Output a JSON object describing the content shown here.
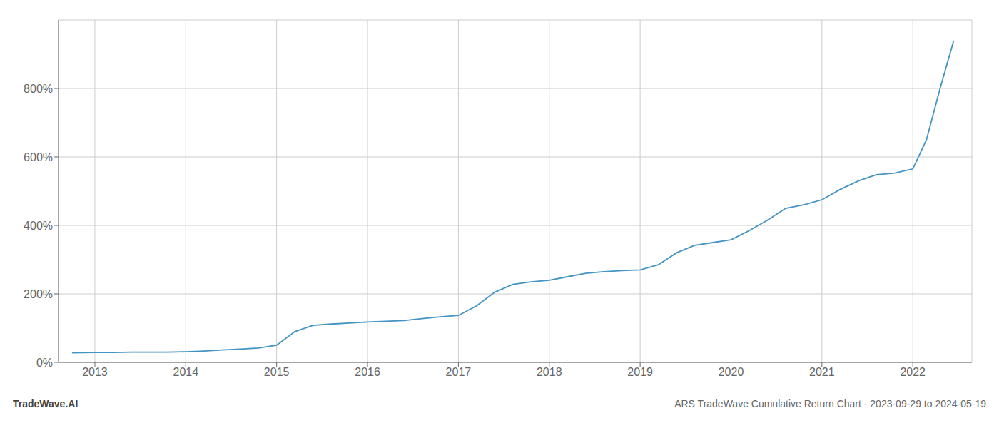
{
  "chart_data": {
    "type": "line",
    "title": "ARS TradeWave Cumulative Return Chart - 2023-09-29 to 2024-05-19",
    "annotations": [
      "TradeWave.AI"
    ],
    "x": [
      2012.75,
      2013.0,
      2013.2,
      2013.4,
      2013.6,
      2013.8,
      2014.0,
      2014.2,
      2014.4,
      2014.6,
      2014.8,
      2015.0,
      2015.2,
      2015.4,
      2015.6,
      2015.8,
      2016.0,
      2016.2,
      2016.4,
      2016.6,
      2016.8,
      2017.0,
      2017.2,
      2017.4,
      2017.6,
      2017.8,
      2018.0,
      2018.2,
      2018.4,
      2018.6,
      2018.8,
      2019.0,
      2019.2,
      2019.4,
      2019.6,
      2019.8,
      2020.0,
      2020.2,
      2020.4,
      2020.6,
      2020.8,
      2021.0,
      2021.2,
      2021.4,
      2021.6,
      2021.8,
      2022.0,
      2022.15,
      2022.3,
      2022.45
    ],
    "values": [
      28,
      29,
      29,
      30,
      30,
      30,
      31,
      33,
      36,
      39,
      42,
      50,
      90,
      108,
      112,
      115,
      118,
      120,
      122,
      128,
      133,
      137,
      165,
      205,
      228,
      235,
      240,
      250,
      260,
      265,
      268,
      270,
      285,
      320,
      342,
      350,
      358,
      385,
      415,
      450,
      460,
      475,
      505,
      530,
      548,
      553,
      565,
      650,
      800,
      940
    ],
    "color": "#4393c3",
    "xlim": [
      2012.6,
      2022.65
    ],
    "xticks": [
      2013,
      2014,
      2015,
      2016,
      2017,
      2018,
      2019,
      2020,
      2021,
      2022
    ],
    "ylim": [
      0,
      1000
    ],
    "yticks": [
      {
        "value": 0,
        "label": "0%"
      },
      {
        "value": 200,
        "label": "200%"
      },
      {
        "value": 400,
        "label": "400%"
      },
      {
        "value": 600,
        "label": "600%"
      },
      {
        "value": 800,
        "label": "800%"
      }
    ],
    "grid": true
  }
}
